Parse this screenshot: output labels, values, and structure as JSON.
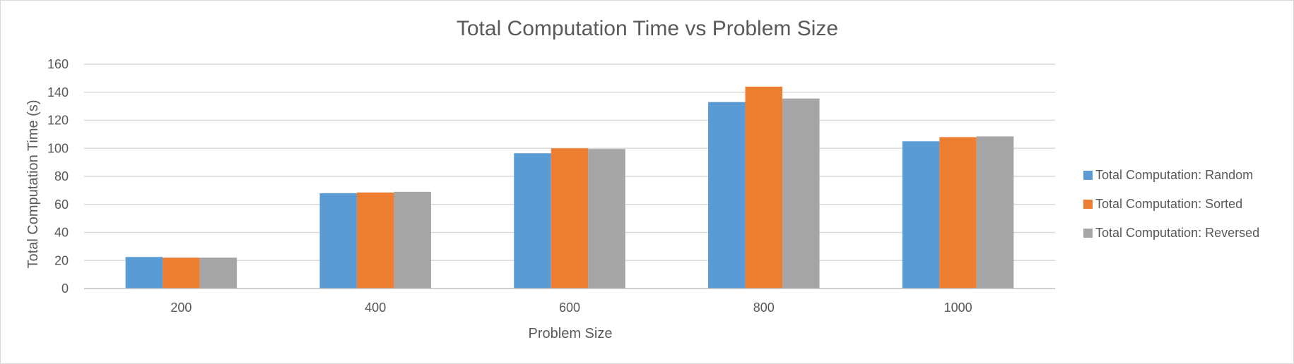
{
  "chart_data": {
    "type": "bar",
    "title": "Total Computation Time vs Problem Size",
    "xlabel": "Problem Size",
    "ylabel": "Total Computation Time (s)",
    "categories": [
      "200",
      "400",
      "600",
      "800",
      "1000"
    ],
    "ylim": [
      0,
      160
    ],
    "yticks": [
      0,
      20,
      40,
      60,
      80,
      100,
      120,
      140,
      160
    ],
    "grid": true,
    "legend_position": "right",
    "series": [
      {
        "name": "Total Computation: Random",
        "color": "#5b9bd5",
        "values": [
          22.5,
          68,
          96.5,
          133,
          105
        ]
      },
      {
        "name": "Total Computation: Sorted",
        "color": "#ed7d31",
        "values": [
          22,
          68.5,
          100,
          144,
          108
        ]
      },
      {
        "name": "Total Computation: Reversed",
        "color": "#a5a5a5",
        "values": [
          22,
          69,
          99.5,
          135.5,
          108.5
        ]
      }
    ]
  }
}
